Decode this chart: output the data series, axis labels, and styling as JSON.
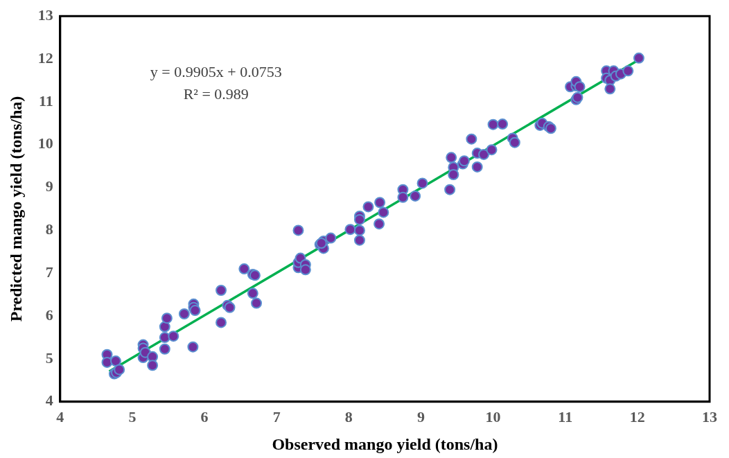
{
  "chart_data": {
    "type": "scatter",
    "xlabel": "Observed mango yield (tons/ha)",
    "ylabel": "Predicted mango yield (tons/ha)",
    "annotations": [
      "y = 0.9905x + 0.0753",
      "R² = 0.989"
    ],
    "xlim": [
      4,
      13
    ],
    "xticks": [
      4,
      5,
      6,
      7,
      8,
      9,
      10,
      11,
      12,
      13
    ],
    "ylim": [
      4,
      13
    ],
    "yticks": [
      4,
      5,
      6,
      7,
      8,
      9,
      10,
      11,
      12,
      13
    ],
    "grid": false,
    "legend": false,
    "marker": "circle",
    "series": [
      {
        "color": "#7030a0",
        "x": [
          4.65,
          4.65,
          4.75,
          4.78,
          4.77,
          4.82,
          5.15,
          5.15,
          5.15,
          5.18,
          5.28,
          5.28,
          5.45,
          5.45,
          5.48,
          5.45,
          5.57,
          5.72,
          5.85,
          5.85,
          5.87,
          5.84,
          6.23,
          6.23,
          6.32,
          6.35,
          6.55,
          6.67,
          6.7,
          6.67,
          6.72,
          7.3,
          7.3,
          7.3,
          7.33,
          7.4,
          7.4,
          7.6,
          7.65,
          7.65,
          7.75,
          7.62,
          8.02,
          8.15,
          8.15,
          8.15,
          8.15,
          8.27,
          8.42,
          8.43,
          8.48,
          8.75,
          8.75,
          8.92,
          9.02,
          9.4,
          9.42,
          9.45,
          9.45,
          9.58,
          9.6,
          9.7,
          9.78,
          9.78,
          9.87,
          9.98,
          10.0,
          10.13,
          10.27,
          10.3,
          10.65,
          10.68,
          10.77,
          10.8,
          11.07,
          11.15,
          11.15,
          11.15,
          11.17,
          11.2,
          11.57,
          11.57,
          11.62,
          11.62,
          11.67,
          11.7,
          11.77,
          11.87,
          12.02
        ],
        "values": [
          5.1,
          4.92,
          4.65,
          4.68,
          4.95,
          4.75,
          5.33,
          5.25,
          5.03,
          5.15,
          5.05,
          4.85,
          5.75,
          5.5,
          5.95,
          5.23,
          5.53,
          6.05,
          6.28,
          6.2,
          6.13,
          5.28,
          6.6,
          5.85,
          6.25,
          6.2,
          7.1,
          6.97,
          6.95,
          6.53,
          6.3,
          8.0,
          7.13,
          7.25,
          7.35,
          7.2,
          7.08,
          7.67,
          7.75,
          7.58,
          7.82,
          7.7,
          8.02,
          8.33,
          8.25,
          8.0,
          7.77,
          8.55,
          8.15,
          8.65,
          8.42,
          8.95,
          8.77,
          8.8,
          9.1,
          8.95,
          9.7,
          9.47,
          9.3,
          9.55,
          9.62,
          10.13,
          9.8,
          9.48,
          9.77,
          9.88,
          10.47,
          10.48,
          10.15,
          10.05,
          10.45,
          10.5,
          10.42,
          10.38,
          11.35,
          11.37,
          11.47,
          11.05,
          11.1,
          11.35,
          11.72,
          11.55,
          11.5,
          11.3,
          11.72,
          11.6,
          11.65,
          11.72,
          12.02
        ]
      },
      {
        "type": "line",
        "color": "#00b050",
        "marker": "none",
        "x": [
          4.68,
          12.02
        ],
        "values": [
          4.71,
          11.98
        ]
      }
    ]
  }
}
